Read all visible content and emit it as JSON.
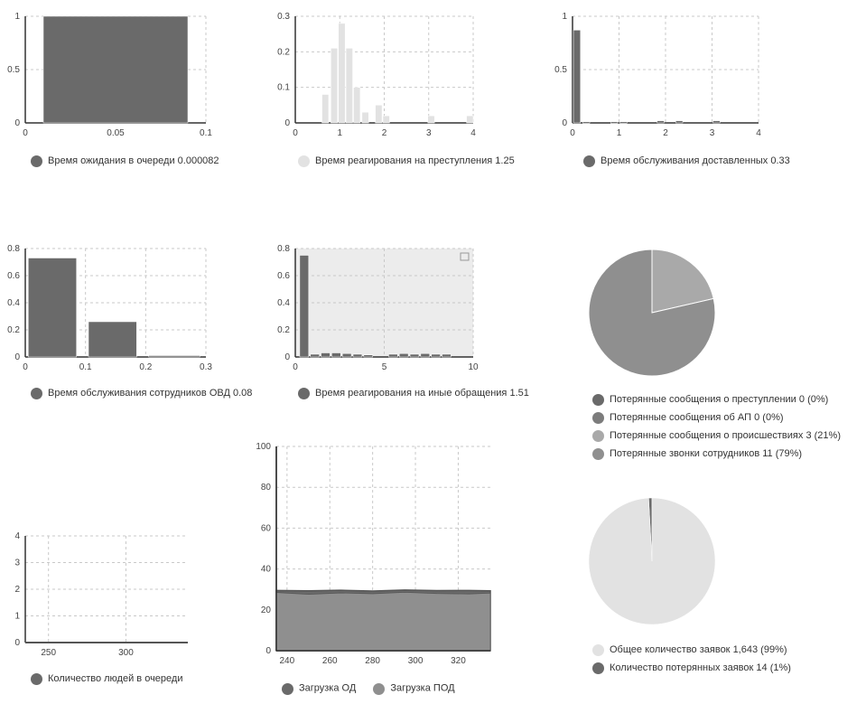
{
  "colors": {
    "dark": "#6a6a6a",
    "light": "#e2e2e2",
    "medium": "#9a9a9a",
    "grid": "#c9c9c9",
    "plotBg": "#ececec"
  },
  "chart_data": [
    {
      "id": "c1",
      "type": "bar",
      "xlim": [
        0,
        0.1
      ],
      "ylim": [
        0,
        1
      ],
      "xticks": [
        "0",
        "0.05",
        "0.1"
      ],
      "yticks": [
        "0",
        "0.5",
        "1"
      ],
      "bars": [
        {
          "x0": 0.01,
          "x1": 0.09,
          "value": 1
        }
      ],
      "legend": {
        "label": "Время ожидания в очереди",
        "value": "0.000082"
      }
    },
    {
      "id": "c2",
      "type": "bar",
      "xlim": [
        0,
        4
      ],
      "ylim": [
        0,
        0.3
      ],
      "xticks": [
        "0",
        "1",
        "2",
        "3",
        "4"
      ],
      "yticks": [
        "0",
        "0.1",
        "0.2",
        "0.3"
      ],
      "bars": [
        {
          "x0": 0.6,
          "x1": 0.75,
          "value": 0.08
        },
        {
          "x0": 0.8,
          "x1": 0.95,
          "value": 0.21
        },
        {
          "x0": 0.97,
          "x1": 1.12,
          "value": 0.28
        },
        {
          "x0": 1.14,
          "x1": 1.29,
          "value": 0.21
        },
        {
          "x0": 1.31,
          "x1": 1.46,
          "value": 0.1
        },
        {
          "x0": 1.5,
          "x1": 1.65,
          "value": 0.03
        },
        {
          "x0": 1.8,
          "x1": 1.95,
          "value": 0.05
        },
        {
          "x0": 1.97,
          "x1": 2.12,
          "value": 0.02
        },
        {
          "x0": 2.98,
          "x1": 3.13,
          "value": 0.02
        },
        {
          "x0": 3.85,
          "x1": 4.0,
          "value": 0.02
        }
      ],
      "legend": {
        "label": "Время реагирования на преступления",
        "value": "1.25"
      }
    },
    {
      "id": "c3",
      "type": "bar",
      "xlim": [
        0,
        4
      ],
      "ylim": [
        0,
        1
      ],
      "xticks": [
        "0",
        "1",
        "2",
        "3",
        "4"
      ],
      "yticks": [
        "0",
        "0.5",
        "1"
      ],
      "bars": [
        {
          "x0": 0.02,
          "x1": 0.17,
          "value": 0.87
        },
        {
          "x0": 0.22,
          "x1": 0.37,
          "value": 0.01
        },
        {
          "x0": 0.82,
          "x1": 0.97,
          "value": 0.01
        },
        {
          "x0": 1.02,
          "x1": 1.17,
          "value": 0.01
        },
        {
          "x0": 1.82,
          "x1": 1.97,
          "value": 0.02
        },
        {
          "x0": 2.22,
          "x1": 2.37,
          "value": 0.02
        },
        {
          "x0": 3.02,
          "x1": 3.17,
          "value": 0.02
        }
      ],
      "legend": {
        "label": "Время обслуживания доставленных",
        "value": "0.33"
      }
    },
    {
      "id": "c4",
      "type": "bar",
      "xlim": [
        0,
        0.3
      ],
      "ylim": [
        0,
        0.8
      ],
      "xticks": [
        "0",
        "0.1",
        "0.2",
        "0.3"
      ],
      "yticks": [
        "0",
        "0.2",
        "0.4",
        "0.6",
        "0.8"
      ],
      "bars": [
        {
          "x0": 0.005,
          "x1": 0.085,
          "value": 0.73
        },
        {
          "x0": 0.105,
          "x1": 0.185,
          "value": 0.26
        },
        {
          "x0": 0.205,
          "x1": 0.29,
          "value": 0.01
        }
      ],
      "legend": {
        "label": "Время обслуживания сотрудников ОВД",
        "value": "0.08"
      }
    },
    {
      "id": "c5",
      "type": "bar",
      "xlim": [
        0,
        10
      ],
      "ylim": [
        0,
        0.8
      ],
      "xticks": [
        "0",
        "5",
        "10"
      ],
      "yticks": [
        "0",
        "0.2",
        "0.4",
        "0.6",
        "0.8"
      ],
      "bars": [
        {
          "x0": 0.25,
          "x1": 0.75,
          "value": 0.75
        },
        {
          "x0": 0.85,
          "x1": 1.35,
          "value": 0.02
        },
        {
          "x0": 1.45,
          "x1": 1.95,
          "value": 0.03
        },
        {
          "x0": 2.05,
          "x1": 2.55,
          "value": 0.03
        },
        {
          "x0": 2.65,
          "x1": 3.15,
          "value": 0.025
        },
        {
          "x0": 3.25,
          "x1": 3.75,
          "value": 0.02
        },
        {
          "x0": 3.85,
          "x1": 4.35,
          "value": 0.015
        },
        {
          "x0": 5.25,
          "x1": 5.75,
          "value": 0.02
        },
        {
          "x0": 5.85,
          "x1": 6.35,
          "value": 0.025
        },
        {
          "x0": 6.45,
          "x1": 6.95,
          "value": 0.02
        },
        {
          "x0": 7.05,
          "x1": 7.55,
          "value": 0.025
        },
        {
          "x0": 7.65,
          "x1": 8.15,
          "value": 0.02
        },
        {
          "x0": 8.25,
          "x1": 8.75,
          "value": 0.02
        }
      ],
      "legend": {
        "label": "Время реагирования на иные обращения",
        "value": "1.51"
      }
    },
    {
      "id": "pie1",
      "type": "pie",
      "slices": [
        {
          "label": "Потерянные сообщения о преступлении",
          "value": 0,
          "pct": "0%",
          "color": "#6a6a6a"
        },
        {
          "label": "Потерянные сообщения об АП",
          "value": 0,
          "pct": "0%",
          "color": "#7c7c7c"
        },
        {
          "label": "Потерянные сообщения о происшествиях",
          "value": 3,
          "pct": "21%",
          "color": "#a9a9a9"
        },
        {
          "label": "Потерянные звонки сотрудников",
          "value": 11,
          "pct": "79%",
          "color": "#8f8f8f"
        }
      ]
    },
    {
      "id": "c6",
      "type": "line",
      "xlim": [
        235,
        340
      ],
      "ylim": [
        0,
        4
      ],
      "xticks": [
        "250",
        "300"
      ],
      "yticks": [
        "0",
        "1",
        "2",
        "3",
        "4"
      ],
      "x": [
        235,
        340
      ],
      "y": [
        0,
        0
      ],
      "legend": {
        "label": "Количество людей в очереди"
      }
    },
    {
      "id": "c7",
      "type": "area",
      "xlim": [
        235,
        335
      ],
      "ylim": [
        0,
        100
      ],
      "xticks": [
        "240",
        "260",
        "280",
        "300",
        "320"
      ],
      "yticks": [
        "0",
        "20",
        "40",
        "60",
        "80",
        "100"
      ],
      "series": [
        {
          "name": "Загрузка ОД",
          "x": [
            235,
            250,
            265,
            280,
            295,
            310,
            325,
            335
          ],
          "y": [
            29.5,
            29.3,
            29.6,
            29.2,
            29.7,
            29.4,
            29.5,
            29.3
          ]
        },
        {
          "name": "Загрузка ПОД",
          "x": [
            235,
            250,
            265,
            280,
            295,
            310,
            325,
            335
          ],
          "y": [
            28.5,
            27.6,
            28.3,
            27.9,
            28.6,
            28.0,
            27.8,
            28.2
          ]
        }
      ]
    },
    {
      "id": "pie2",
      "type": "pie",
      "slices": [
        {
          "label": "Общее количество заявок",
          "value": "1,643",
          "pct": "99%",
          "color": "#e2e2e2"
        },
        {
          "label": "Количество потерянных заявок",
          "value": "14",
          "pct": "1%",
          "color": "#6a6a6a"
        }
      ]
    }
  ]
}
